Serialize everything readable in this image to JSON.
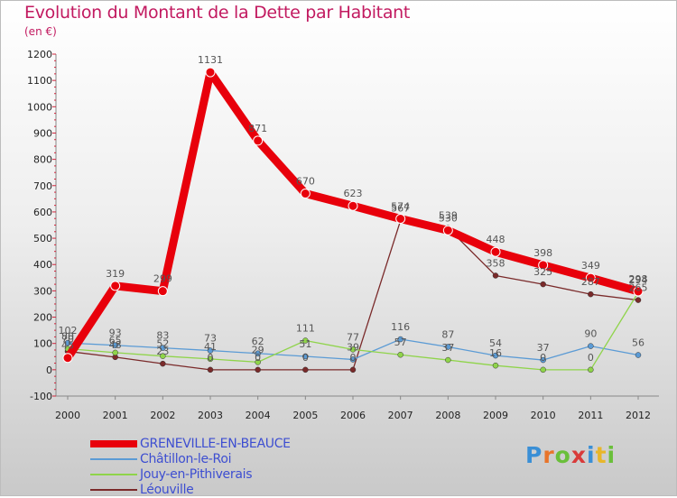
{
  "header": {
    "title": "Evolution du Montant de la Dette par Habitant",
    "subtitle": "(en €)"
  },
  "logo": {
    "text": "Proxiti",
    "colors": [
      "#3a8fd6",
      "#e8742a",
      "#6abf3a",
      "#d93a3a",
      "#3a8fd6",
      "#e8b62a",
      "#6abf3a"
    ]
  },
  "chart_data": {
    "type": "line",
    "title": "Evolution du Montant de la Dette par Habitant",
    "subtitle": "(en €)",
    "x": [
      "2000",
      "2001",
      "2002",
      "2003",
      "2004",
      "2005",
      "2006",
      "2007",
      "2008",
      "2009",
      "2010",
      "2011",
      "2012"
    ],
    "ylim": [
      -100,
      1200
    ],
    "yticks": [
      -100,
      0,
      100,
      200,
      300,
      400,
      500,
      600,
      700,
      800,
      900,
      1000,
      1100,
      1200
    ],
    "grid": false,
    "legend_position": "bottom-left",
    "series": [
      {
        "name": "GRENEVILLE-EN-BEAUCE",
        "color": "#e8000b",
        "values": [
          45,
          319,
          299,
          1131,
          871,
          670,
          623,
          574,
          530,
          448,
          398,
          349,
          298
        ],
        "labels": [
          "45",
          "319",
          "299",
          "1131",
          "871",
          "670",
          "623",
          "574",
          "530",
          "448",
          "398",
          "349",
          "298"
        ]
      },
      {
        "name": "Châtillon-le-Roi",
        "color": "#5b9bd5",
        "values": [
          102,
          93,
          83,
          73,
          62,
          51,
          39,
          116,
          87,
          54,
          37,
          90,
          56
        ],
        "labels": [
          "102",
          "93",
          "83",
          "73",
          "62",
          "51",
          "39",
          "116",
          "87",
          "54",
          "37",
          "90",
          "56"
        ]
      },
      {
        "name": "Jouy-en-Pithiverais",
        "color": "#8fd44a",
        "values": [
          80,
          65,
          52,
          41,
          29,
          111,
          77,
          57,
          37,
          16,
          0,
          0,
          294
        ],
        "labels": [
          "80",
          "65",
          "52",
          "41",
          "29",
          "111",
          "77",
          "57",
          "37",
          "16",
          "0",
          "0",
          "294"
        ]
      },
      {
        "name": "Léouville",
        "color": "#7a2a2a",
        "values": [
          70,
          48,
          23,
          0,
          0,
          0,
          0,
          567,
          539,
          358,
          325,
          287,
          265
        ],
        "labels": [
          "70",
          "48",
          "23",
          "0",
          "0",
          "0",
          "0",
          "567",
          "539",
          "358",
          "325",
          "287",
          "265"
        ]
      }
    ]
  }
}
